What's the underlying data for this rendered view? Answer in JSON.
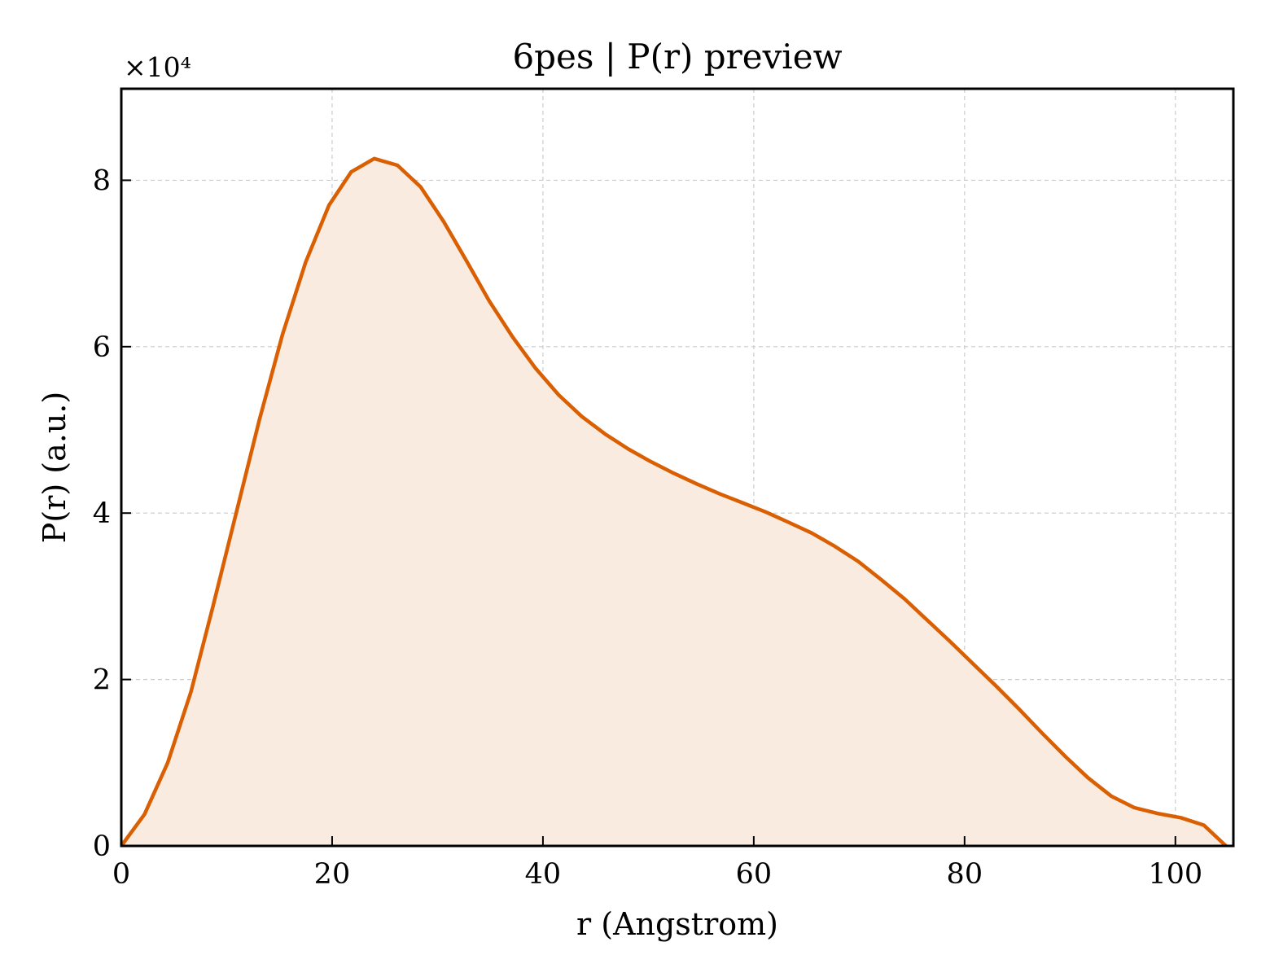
{
  "chart_data": {
    "type": "area",
    "title": "6pes | P(r) preview",
    "xlabel": "r (Angstrom)",
    "ylabel": "P(r) (a.u.)",
    "y_multiplier_label": "×10⁴",
    "xlim": [
      0,
      105.5
    ],
    "ylim": [
      0,
      9.1
    ],
    "x_ticks": [
      0,
      20,
      40,
      60,
      80,
      100
    ],
    "x_tick_labels": [
      "0",
      "20",
      "40",
      "60",
      "80",
      "100"
    ],
    "y_ticks": [
      0,
      2,
      4,
      6,
      8
    ],
    "y_tick_labels": [
      "0",
      "2",
      "4",
      "6",
      "8"
    ],
    "grid": true,
    "line_color": "#d95f02",
    "fill_color": "#f9ebe0",
    "series": [
      {
        "x": [
          0,
          2.2,
          4.4,
          6.6,
          8.7,
          10.9,
          13.1,
          15.3,
          17.5,
          19.7,
          21.8,
          24.0,
          26.2,
          28.4,
          30.6,
          32.8,
          34.9,
          37.1,
          39.3,
          41.5,
          43.7,
          45.9,
          48.1,
          50.2,
          52.4,
          54.6,
          56.8,
          59.0,
          61.2,
          63.3,
          65.5,
          67.7,
          69.9,
          72.1,
          74.3,
          76.4,
          78.6,
          80.8,
          83.0,
          85.2,
          87.4,
          89.6,
          91.7,
          93.9,
          96.1,
          98.3,
          100.5,
          102.7,
          104.8
        ],
        "y": [
          0,
          0.38,
          1.0,
          1.85,
          2.88,
          4.0,
          5.12,
          6.15,
          7.02,
          7.7,
          8.1,
          8.26,
          8.18,
          7.92,
          7.5,
          7.02,
          6.55,
          6.12,
          5.74,
          5.42,
          5.16,
          4.95,
          4.77,
          4.62,
          4.48,
          4.35,
          4.23,
          4.12,
          4.01,
          3.89,
          3.76,
          3.6,
          3.42,
          3.2,
          2.97,
          2.72,
          2.46,
          2.19,
          1.92,
          1.64,
          1.35,
          1.07,
          0.82,
          0.6,
          0.46,
          0.39,
          0.34,
          0.25,
          0
        ]
      }
    ]
  }
}
